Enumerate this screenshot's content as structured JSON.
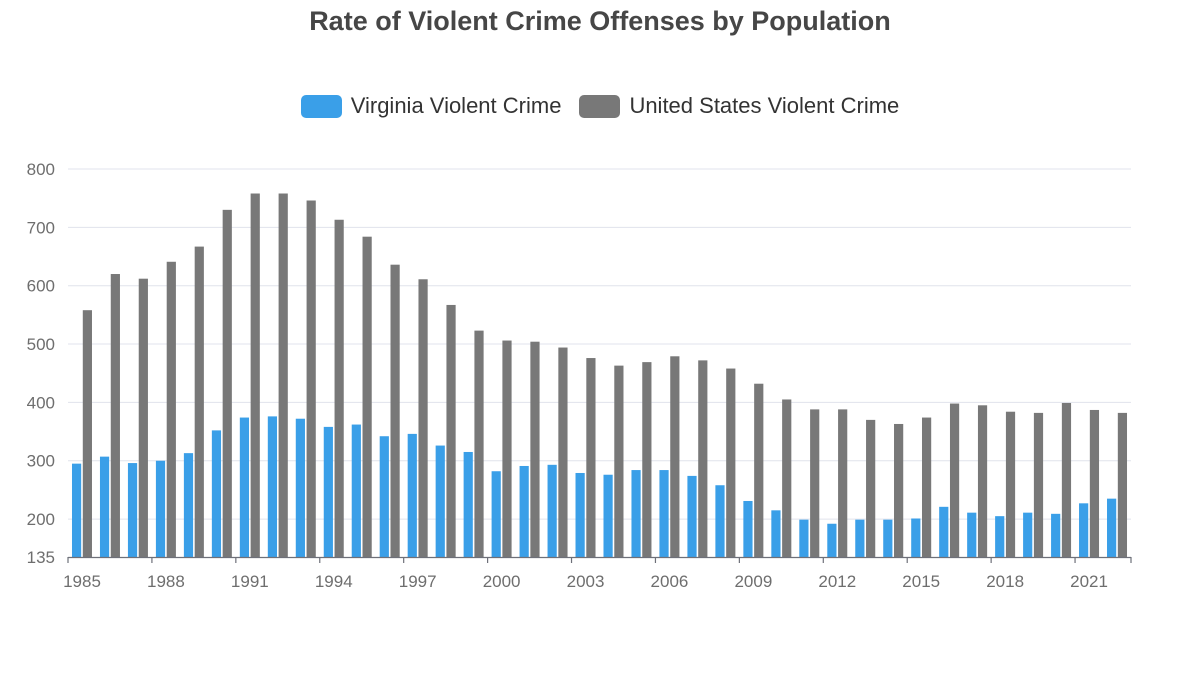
{
  "chart_data": {
    "type": "bar",
    "title": "Rate of Violent Crime Offenses by Population",
    "xlabel": "",
    "ylabel": "",
    "ylim": [
      135,
      800
    ],
    "yticks": [
      135,
      200,
      300,
      400,
      500,
      600,
      700,
      800
    ],
    "grid": true,
    "legend_position": "top-center",
    "categories": [
      "1985",
      "1986",
      "1987",
      "1988",
      "1989",
      "1990",
      "1991",
      "1992",
      "1993",
      "1994",
      "1995",
      "1996",
      "1997",
      "1998",
      "1999",
      "2000",
      "2001",
      "2002",
      "2003",
      "2004",
      "2005",
      "2006",
      "2007",
      "2008",
      "2009",
      "2010",
      "2011",
      "2012",
      "2013",
      "2014",
      "2015",
      "2016",
      "2017",
      "2018",
      "2019",
      "2020",
      "2021",
      "2022"
    ],
    "xtick_labels": [
      "1985",
      "1988",
      "1991",
      "1994",
      "1997",
      "2000",
      "2003",
      "2006",
      "2009",
      "2012",
      "2015",
      "2018",
      "2021"
    ],
    "series": [
      {
        "name": "Virginia Violent Crime",
        "color": "#3a9fe8",
        "values": [
          295,
          307,
          296,
          300,
          313,
          352,
          374,
          376,
          372,
          358,
          362,
          342,
          346,
          326,
          315,
          282,
          291,
          293,
          279,
          276,
          284,
          284,
          274,
          258,
          231,
          215,
          199,
          192,
          199,
          199,
          201,
          221,
          211,
          205,
          211,
          209,
          227,
          235
        ]
      },
      {
        "name": "United States Violent Crime",
        "color": "#787878",
        "values": [
          558,
          620,
          612,
          641,
          667,
          730,
          758,
          758,
          746,
          713,
          684,
          636,
          611,
          567,
          523,
          506,
          504,
          494,
          476,
          463,
          469,
          479,
          472,
          458,
          432,
          405,
          388,
          388,
          370,
          363,
          374,
          398,
          395,
          384,
          382,
          399,
          387,
          382
        ]
      }
    ]
  }
}
